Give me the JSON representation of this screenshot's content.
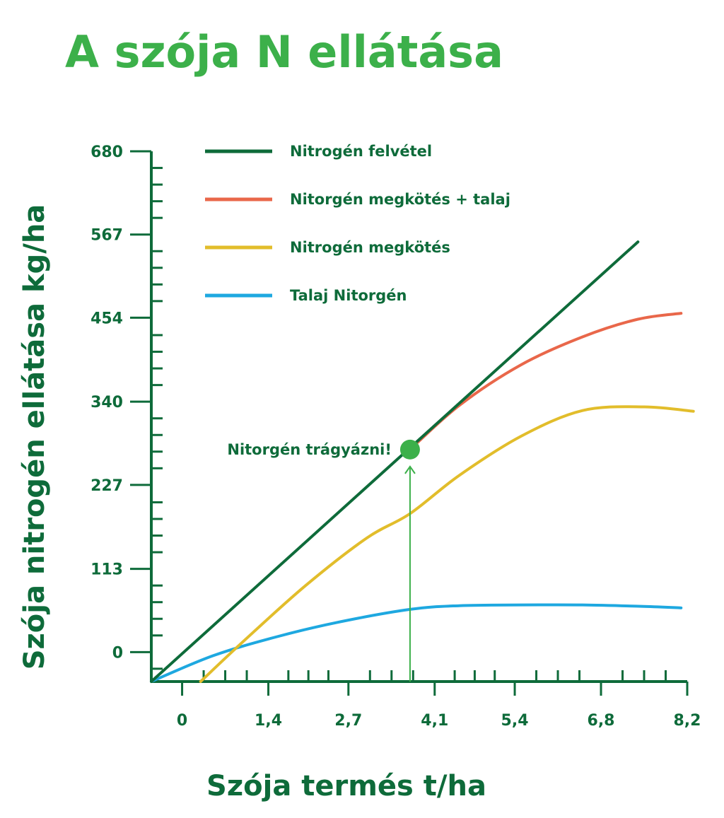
{
  "chart_data": {
    "type": "line",
    "title": "A szója N ellátása",
    "xlabel": "Szója termés t/ha",
    "ylabel": "Szója nitrogén ellátása kg/ha",
    "xticks": [
      "0",
      "1,4",
      "2,7",
      "4,1",
      "5,4",
      "6,8",
      "8,2"
    ],
    "xtick_values": [
      0,
      1.4,
      2.7,
      4.1,
      5.4,
      6.8,
      8.2
    ],
    "yticks": [
      "0",
      "113",
      "227",
      "340",
      "454",
      "567",
      "680"
    ],
    "ytick_values": [
      0,
      113,
      227,
      340,
      454,
      567,
      680
    ],
    "xlim": [
      -0.5,
      8.2
    ],
    "ylim": [
      -40,
      680
    ],
    "grid": false,
    "legend_position": "top-left",
    "series": [
      {
        "name": "Nitrogén felvétel",
        "color": "#0e6b3a",
        "x": [
          -0.5,
          7.4
        ],
        "y": [
          -40,
          557
        ]
      },
      {
        "name": "Nitorgén megkötés + talaj",
        "color": "#e9674a",
        "x": [
          3.7,
          4.5,
          5.5,
          6.5,
          7.4,
          8.1
        ],
        "y": [
          275,
          335,
          390,
          428,
          452,
          460
        ]
      },
      {
        "name": "Nitrogén megkötés",
        "color": "#e2bd2b",
        "x": [
          0.3,
          1.0,
          2.0,
          3.0,
          3.7,
          4.5,
          5.5,
          6.5,
          7.5,
          8.3
        ],
        "y": [
          -40,
          15,
          90,
          155,
          188,
          240,
          293,
          328,
          333,
          327
        ]
      },
      {
        "name": "Talaj Nitorgén",
        "color": "#1ea8e0",
        "x": [
          -0.5,
          0.5,
          1.5,
          2.5,
          3.7,
          4.5,
          5.5,
          6.5,
          7.5,
          8.1
        ],
        "y": [
          -40,
          -5,
          20,
          40,
          58,
          63,
          64,
          64,
          62,
          60
        ]
      }
    ],
    "annotation": {
      "text": "Nitorgén trágyázni!",
      "x": 3.7,
      "y": 275,
      "color": "#3cb04a"
    }
  },
  "colors": {
    "title": "#3cb04a",
    "axis": "#0e6b3a",
    "text": "#0e6b3a",
    "arrow": "#3cb04a"
  }
}
